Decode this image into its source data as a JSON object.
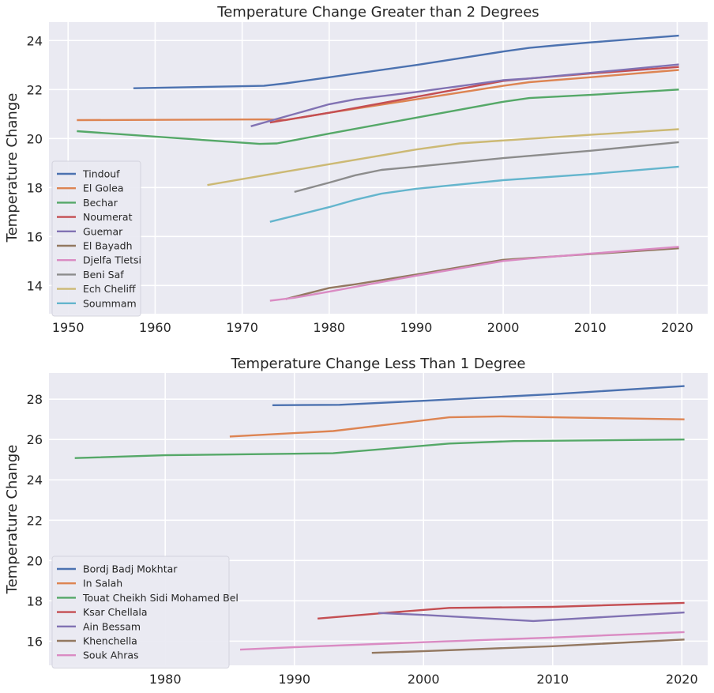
{
  "chart_data": [
    {
      "type": "line",
      "title": "Temperature Change Greater than 2 Degrees",
      "xlabel": "",
      "ylabel": "Temperature Change",
      "xlim": [
        1947.8,
        2023.5
      ],
      "ylim": [
        12.85,
        24.75
      ],
      "xticks": [
        1950,
        1960,
        1970,
        1980,
        1990,
        2000,
        2010,
        2020
      ],
      "yticks": [
        14,
        16,
        18,
        20,
        22,
        24
      ],
      "grid": true,
      "legend_position": "lower-left",
      "series": [
        {
          "name": "Tindouf",
          "color": "#4c72b0",
          "x": [
            1957.5,
            1972.5,
            1975,
            1980,
            1990,
            2000,
            2003,
            2006,
            2010,
            2020.2
          ],
          "y": [
            22.05,
            22.15,
            22.25,
            22.5,
            23.0,
            23.55,
            23.7,
            23.8,
            23.92,
            24.2
          ]
        },
        {
          "name": "El Golea",
          "color": "#dd8452",
          "x": [
            1951,
            1973,
            1975,
            1980,
            1990,
            2000,
            2003,
            2010,
            2020.2
          ],
          "y": [
            20.75,
            20.78,
            20.75,
            21.05,
            21.6,
            22.15,
            22.3,
            22.5,
            22.8
          ]
        },
        {
          "name": "Bechar",
          "color": "#55a868",
          "x": [
            1951,
            1972,
            1974,
            1980,
            1990,
            2000,
            2003,
            2010,
            2020.2
          ],
          "y": [
            20.3,
            19.78,
            19.8,
            20.2,
            20.85,
            21.5,
            21.65,
            21.78,
            22.0
          ]
        },
        {
          "name": "Noumerat",
          "color": "#c44e52",
          "x": [
            1973.2,
            1980,
            1990,
            2000,
            2003,
            2010,
            2020.2
          ],
          "y": [
            20.65,
            21.05,
            21.7,
            22.35,
            22.45,
            22.65,
            22.92
          ]
        },
        {
          "name": "Guemar",
          "color": "#8172b3",
          "x": [
            1971,
            1975,
            1980,
            1983,
            1990,
            2000,
            2003,
            2010,
            2020.2
          ],
          "y": [
            20.5,
            20.9,
            21.4,
            21.6,
            21.9,
            22.38,
            22.45,
            22.68,
            23.02
          ]
        },
        {
          "name": "El Bayadh",
          "color": "#937860",
          "x": [
            1975,
            1980,
            1983,
            1990,
            2000,
            2003,
            2010,
            2020.2
          ],
          "y": [
            13.45,
            13.9,
            14.05,
            14.45,
            15.05,
            15.12,
            15.28,
            15.52
          ]
        },
        {
          "name": "Djelfa Tletsi",
          "color": "#da8bc3",
          "x": [
            1973.2,
            1976,
            1980,
            1990,
            2000,
            2003,
            2010,
            2020.2
          ],
          "y": [
            13.38,
            13.5,
            13.75,
            14.4,
            15.0,
            15.1,
            15.3,
            15.58
          ]
        },
        {
          "name": "Beni Saf",
          "color": "#8c8c8c",
          "x": [
            1976,
            1980,
            1983,
            1986,
            1990,
            2000,
            2010,
            2020.2
          ],
          "y": [
            17.82,
            18.2,
            18.5,
            18.72,
            18.85,
            19.2,
            19.5,
            19.85
          ]
        },
        {
          "name": "Ech Cheliff",
          "color": "#ccb974",
          "x": [
            1966,
            1975,
            1980,
            1990,
            1995,
            2000,
            2010,
            2020.2
          ],
          "y": [
            18.1,
            18.65,
            18.95,
            19.55,
            19.8,
            19.92,
            20.15,
            20.38
          ]
        },
        {
          "name": "Soummam",
          "color": "#64b5cd",
          "x": [
            1973.2,
            1980,
            1983,
            1986,
            1990,
            2000,
            2010,
            2020.2
          ],
          "y": [
            16.6,
            17.2,
            17.5,
            17.75,
            17.95,
            18.3,
            18.55,
            18.85
          ]
        }
      ]
    },
    {
      "type": "line",
      "title": "Temperature Change Less Than 1 Degree",
      "xlabel": "",
      "ylabel": "Temperature Change",
      "xlim": [
        1971.0,
        2022.0
      ],
      "ylim": [
        14.8,
        29.3
      ],
      "xticks": [
        1980,
        1990,
        2000,
        2010,
        2020
      ],
      "yticks": [
        16,
        18,
        20,
        22,
        24,
        26,
        28
      ],
      "grid": true,
      "legend_position": "lower-left",
      "series": [
        {
          "name": "Bordj Badj Mokhtar",
          "color": "#4c72b0",
          "x": [
            1988.3,
            1993.5,
            2000,
            2010,
            2020.2
          ],
          "y": [
            27.7,
            27.72,
            27.92,
            28.25,
            28.65
          ]
        },
        {
          "name": "In Salah",
          "color": "#dd8452",
          "x": [
            1985,
            1993,
            2002,
            2006,
            2010,
            2020.2
          ],
          "y": [
            26.15,
            26.42,
            27.1,
            27.15,
            27.1,
            27.0
          ]
        },
        {
          "name": "Touat Cheikh Sidi Mohamed Bel",
          "color": "#55a868",
          "x": [
            1973,
            1980,
            1993,
            2002,
            2007,
            2020.2
          ],
          "y": [
            25.08,
            25.22,
            25.32,
            25.8,
            25.92,
            26.0
          ]
        },
        {
          "name": "Ksar Chellala",
          "color": "#c44e52",
          "x": [
            1991.8,
            1997,
            2002,
            2010,
            2020.2
          ],
          "y": [
            17.12,
            17.4,
            17.65,
            17.7,
            17.9
          ]
        },
        {
          "name": "Ain Bessam",
          "color": "#8172b3",
          "x": [
            1996.5,
            2000,
            2008.5,
            2010,
            2020.2
          ],
          "y": [
            17.4,
            17.3,
            17.0,
            17.05,
            17.42
          ]
        },
        {
          "name": "Khenchella",
          "color": "#937860",
          "x": [
            1996,
            2000,
            2010,
            2020.2
          ],
          "y": [
            15.42,
            15.5,
            15.75,
            16.08
          ]
        },
        {
          "name": "Souk Ahras",
          "color": "#da8bc3",
          "x": [
            1985.8,
            1990,
            2000,
            2010,
            2020.2
          ],
          "y": [
            15.58,
            15.7,
            15.95,
            16.18,
            16.45
          ]
        }
      ]
    }
  ]
}
